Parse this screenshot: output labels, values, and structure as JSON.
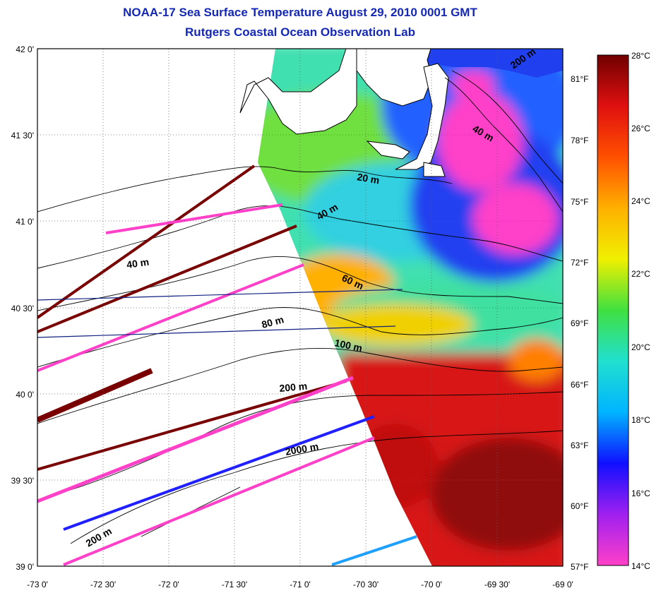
{
  "title": "NOAA-17 Sea Surface Temperature August 29, 2010 0001 GMT",
  "subtitle": "Rutgers Coastal Ocean Observation Lab",
  "lon_ticks": [
    "-73 0'",
    "-72 30'",
    "-72 0'",
    "-71 30'",
    "-71 0'",
    "-70 30'",
    "-70 0'",
    "-69 30'",
    "-69 0'"
  ],
  "lat_ticks": [
    "42 0'",
    "41 30'",
    "41 0'",
    "40 30'",
    "40 0'",
    "39 30'",
    "39 0'"
  ],
  "contour_labels": [
    "200 m",
    "40 m",
    "20 m",
    "40 m",
    "40 m",
    "60 m",
    "80 m",
    "100 m",
    "200 m",
    "2000 m",
    "200 m"
  ],
  "colorbar": {
    "celsius_ticks": [
      "28°C",
      "26°C",
      "24°C",
      "22°C",
      "20°C",
      "18°C",
      "16°C",
      "14°C"
    ],
    "fahrenheit_ticks": [
      "81°F",
      "78°F",
      "75°F",
      "72°F",
      "69°F",
      "66°F",
      "63°F",
      "60°F",
      "57°F"
    ],
    "colors": [
      "#ff40c8",
      "#a020f0",
      "#1010ff",
      "#00b4ff",
      "#20e0d0",
      "#40e040",
      "#f0f000",
      "#ffb000",
      "#ff5000",
      "#e01010",
      "#700000"
    ]
  },
  "colors": {
    "title": "#1428b4",
    "land": "#ffffff",
    "cold_pink": "#ff40c8",
    "cold_blue": "#1010ff",
    "warm_red": "#d81818",
    "dark_red": "#780000"
  }
}
